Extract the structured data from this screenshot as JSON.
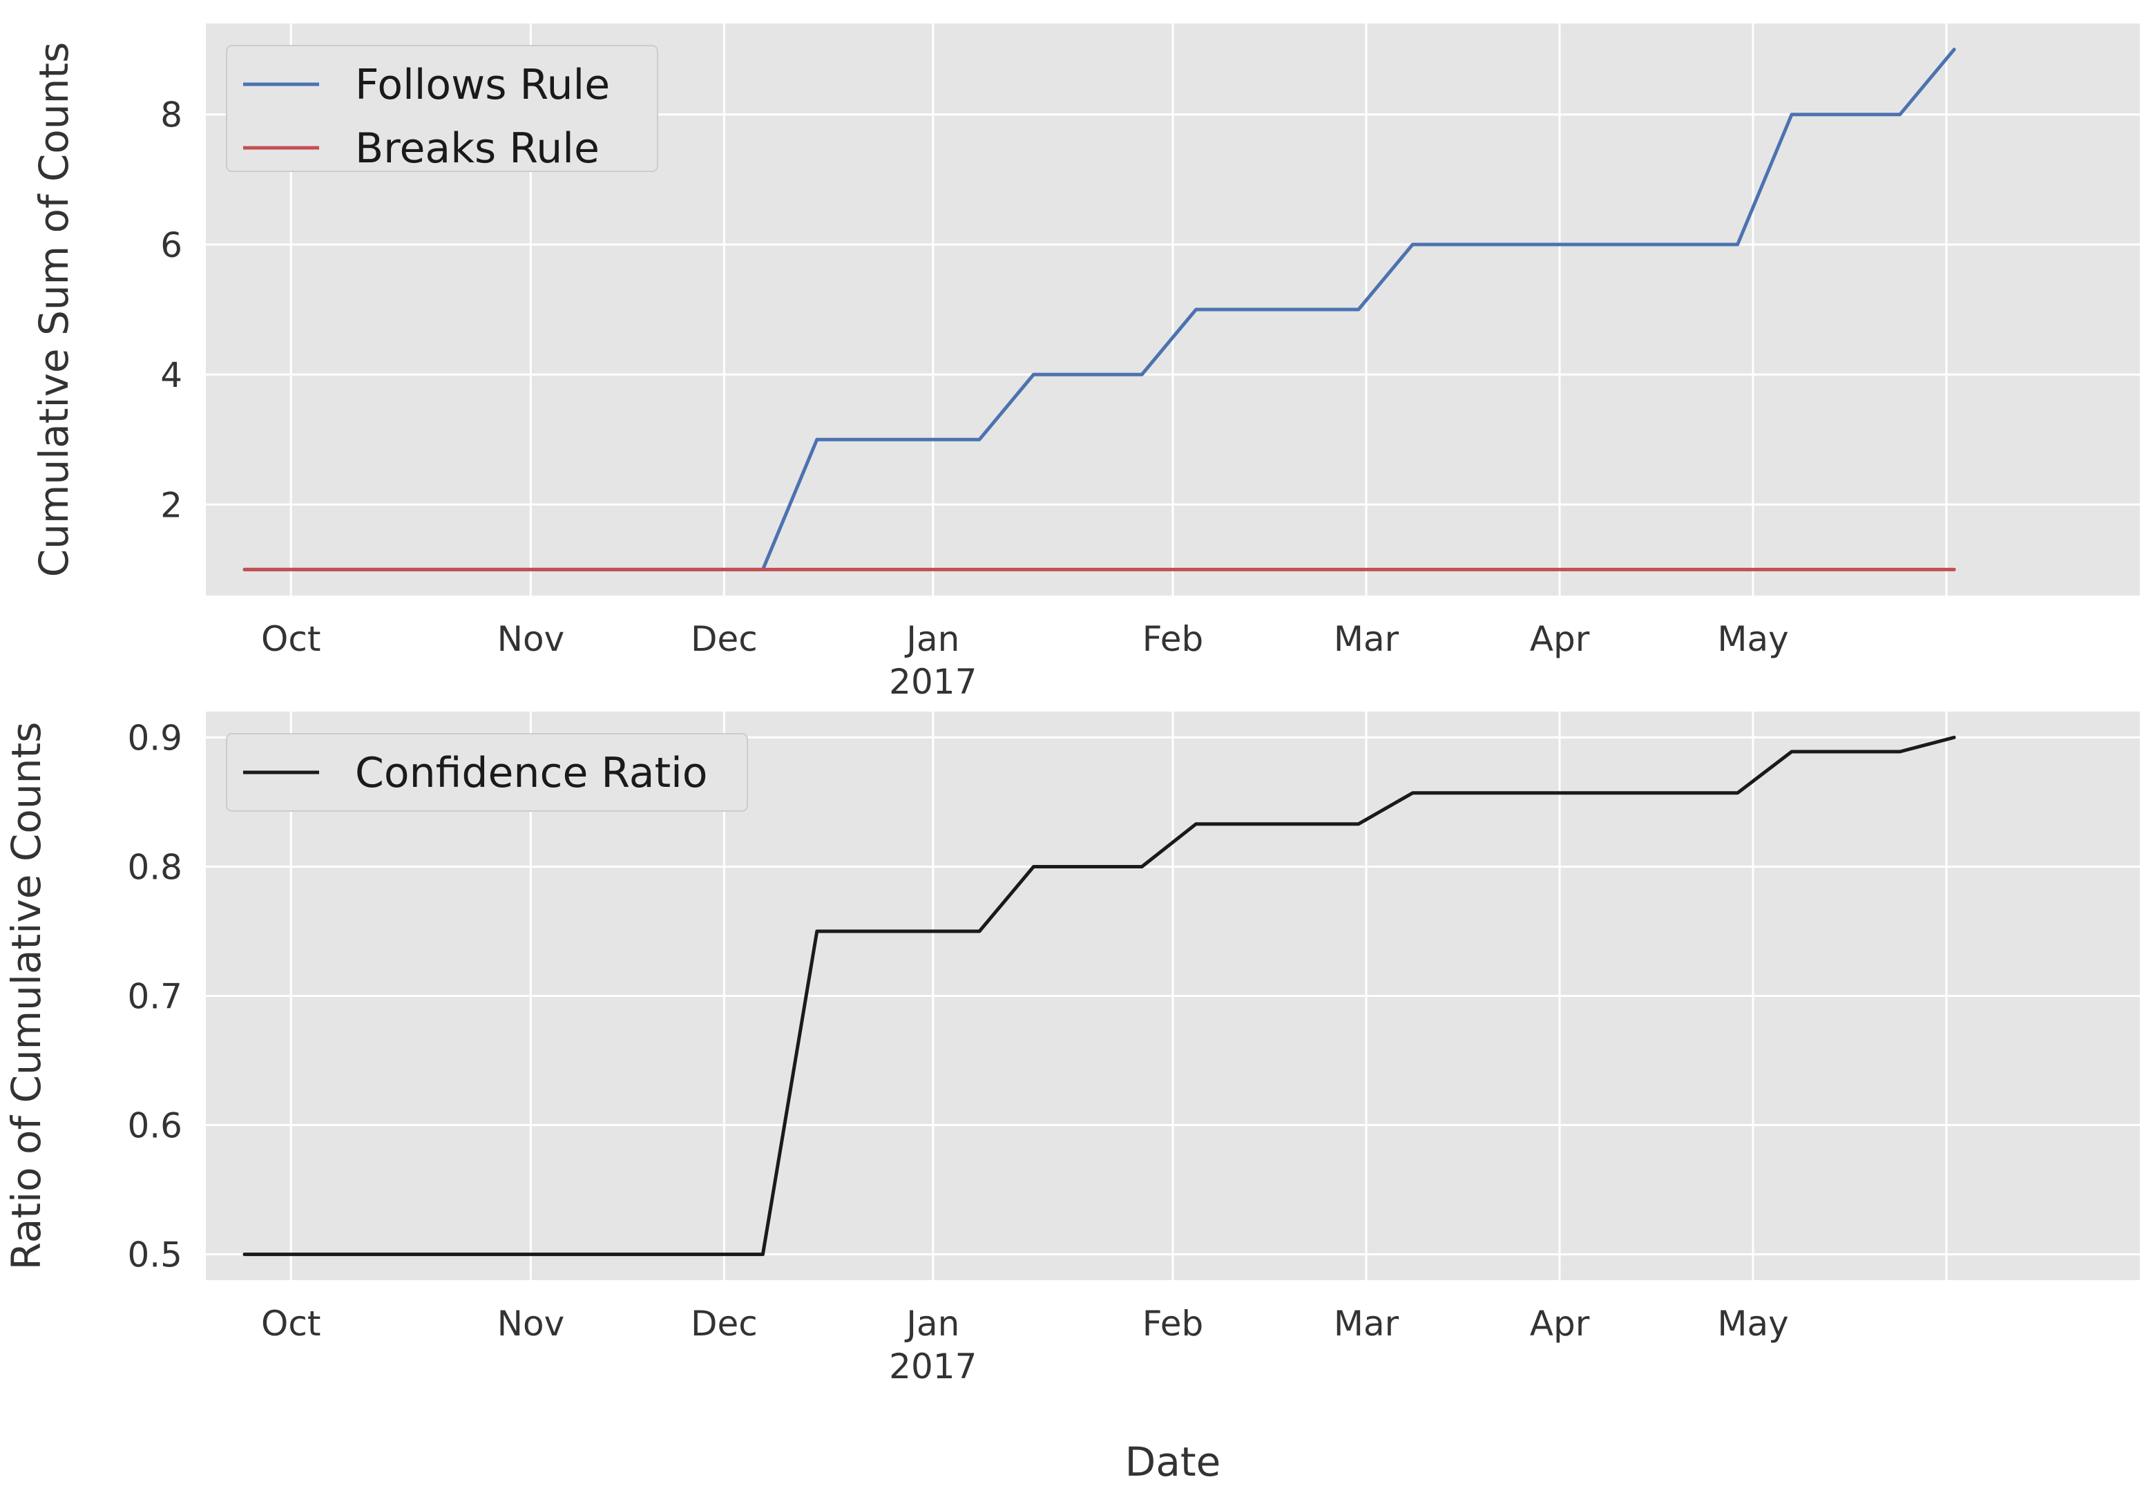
{
  "chart_data": [
    {
      "type": "line",
      "title": "",
      "xlabel": "",
      "ylabel": "Cumulative Sum of Counts",
      "x_axis_type": "date",
      "xlim": [
        "2016-09-20",
        "2017-05-28"
      ],
      "ylim": [
        0.6,
        9.4
      ],
      "yticks": [
        2,
        4,
        6,
        8
      ],
      "ytick_labels": [
        "2",
        "4",
        "6",
        "8"
      ],
      "xticks": [
        "2016-10-01",
        "2016-11-01",
        "2016-11-26",
        "2016-12-23",
        "2017-01-23",
        "2017-02-17",
        "2017-03-14",
        "2017-04-08",
        "2017-05-03"
      ],
      "xtick_labels": [
        "Oct",
        "Nov",
        "Dec",
        "Jan",
        "Feb",
        "Mar",
        "Apr",
        "May",
        ""
      ],
      "xtick_sublabels": [
        "",
        "",
        "",
        "2017",
        "",
        "",
        "",
        "",
        ""
      ],
      "grid": true,
      "background": "#e5e5e5",
      "legend_position": "top-left",
      "series": [
        {
          "name": "Follows Rule",
          "color": "#4c72b0",
          "x": [
            "2016-09-25",
            "2016-12-01",
            "2016-12-08",
            "2016-12-29",
            "2017-01-05",
            "2017-01-19",
            "2017-01-26",
            "2017-02-16",
            "2017-02-23",
            "2017-04-06",
            "2017-04-13",
            "2017-04-27",
            "2017-05-04"
          ],
          "values": [
            1,
            1,
            3,
            3,
            4,
            4,
            5,
            5,
            6,
            6,
            8,
            8,
            9
          ]
        },
        {
          "name": "Breaks Rule",
          "color": "#c44e52",
          "x": [
            "2016-09-25",
            "2017-05-04"
          ],
          "values": [
            1,
            1
          ]
        }
      ]
    },
    {
      "type": "line",
      "title": "",
      "xlabel": "Date",
      "ylabel": "Ratio of Cumulative Counts",
      "x_axis_type": "date",
      "xlim": [
        "2016-09-20",
        "2017-05-28"
      ],
      "ylim": [
        0.48,
        0.92
      ],
      "yticks": [
        0.5,
        0.6,
        0.7,
        0.8,
        0.9
      ],
      "ytick_labels": [
        "0.5",
        "0.6",
        "0.7",
        "0.8",
        "0.9"
      ],
      "xticks": [
        "2016-10-01",
        "2016-11-01",
        "2016-11-26",
        "2016-12-23",
        "2017-01-23",
        "2017-02-17",
        "2017-03-14",
        "2017-04-08",
        "2017-05-03"
      ],
      "xtick_labels": [
        "Oct",
        "Nov",
        "Dec",
        "Jan",
        "Feb",
        "Mar",
        "Apr",
        "May",
        ""
      ],
      "xtick_sublabels": [
        "",
        "",
        "",
        "2017",
        "",
        "",
        "",
        "",
        ""
      ],
      "grid": true,
      "background": "#e5e5e5",
      "legend_position": "top-left",
      "series": [
        {
          "name": "Confidence Ratio",
          "color": "#1a1a1a",
          "x": [
            "2016-09-25",
            "2016-12-01",
            "2016-12-08",
            "2016-12-29",
            "2017-01-05",
            "2017-01-19",
            "2017-01-26",
            "2017-02-16",
            "2017-02-23",
            "2017-04-06",
            "2017-04-13",
            "2017-04-27",
            "2017-05-04"
          ],
          "values": [
            0.5,
            0.5,
            0.75,
            0.75,
            0.8,
            0.8,
            0.833,
            0.833,
            0.857,
            0.857,
            0.889,
            0.889,
            0.9
          ]
        }
      ]
    }
  ]
}
